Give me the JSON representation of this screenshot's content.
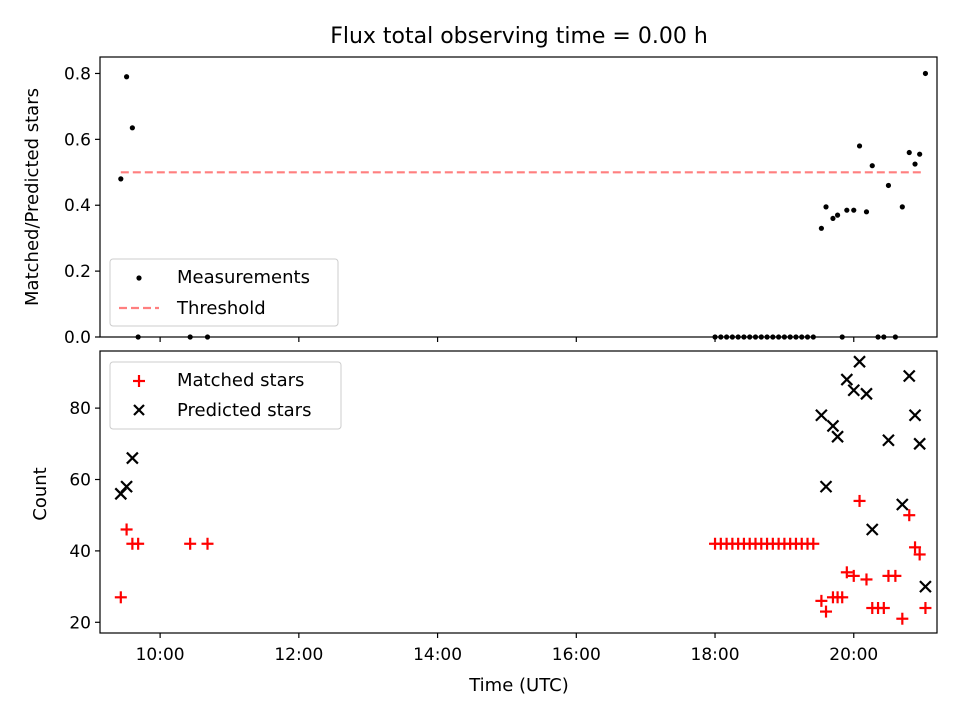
{
  "chart_data": [
    {
      "type": "scatter",
      "title": "Flux total observing time = 0.00 h",
      "ylabel": "Matched/Predicted stars",
      "xlabel": "",
      "ylim": [
        0,
        0.85
      ],
      "yticks": [
        "0.0",
        "0.2",
        "0.4",
        "0.6",
        "0.8"
      ],
      "legend": {
        "position": "lower-left",
        "entries": [
          {
            "label": "Measurements",
            "marker": "dot",
            "color": "#000000"
          },
          {
            "label": "Threshold",
            "marker": "dashed-line",
            "color": "#ff7f7f"
          }
        ]
      },
      "series": [
        {
          "name": "Measurements",
          "marker": "dot",
          "color": "#000000",
          "points": [
            [
              "09:26",
              0.48
            ],
            [
              "09:31",
              0.79
            ],
            [
              "09:36",
              0.635
            ],
            [
              "09:41",
              0.0
            ],
            [
              "10:26",
              0.0
            ],
            [
              "10:41",
              0.0
            ],
            [
              "18:00",
              0.0
            ],
            [
              "18:05",
              0.0
            ],
            [
              "18:10",
              0.0
            ],
            [
              "18:15",
              0.0
            ],
            [
              "18:20",
              0.0
            ],
            [
              "18:25",
              0.0
            ],
            [
              "18:30",
              0.0
            ],
            [
              "18:35",
              0.0
            ],
            [
              "18:40",
              0.0
            ],
            [
              "18:45",
              0.0
            ],
            [
              "18:50",
              0.0
            ],
            [
              "18:55",
              0.0
            ],
            [
              "19:00",
              0.0
            ],
            [
              "19:05",
              0.0
            ],
            [
              "19:10",
              0.0
            ],
            [
              "19:15",
              0.0
            ],
            [
              "19:20",
              0.0
            ],
            [
              "19:25",
              0.0
            ],
            [
              "19:32",
              0.33
            ],
            [
              "19:36",
              0.395
            ],
            [
              "19:42",
              0.36
            ],
            [
              "19:46",
              0.37
            ],
            [
              "19:50",
              0.0
            ],
            [
              "19:54",
              0.385
            ],
            [
              "20:00",
              0.385
            ],
            [
              "20:05",
              0.58
            ],
            [
              "20:11",
              0.38
            ],
            [
              "20:16",
              0.52
            ],
            [
              "20:21",
              0.0
            ],
            [
              "20:26",
              0.0
            ],
            [
              "20:30",
              0.46
            ],
            [
              "20:36",
              0.0
            ],
            [
              "20:42",
              0.395
            ],
            [
              "20:48",
              0.56
            ],
            [
              "20:53",
              0.525
            ],
            [
              "20:57",
              0.555
            ],
            [
              "21:02",
              0.8
            ]
          ]
        },
        {
          "name": "Threshold",
          "marker": "dashed-line",
          "color": "#ff7f7f",
          "points": [
            [
              "09:26",
              0.5
            ],
            [
              "21:00",
              0.5
            ]
          ]
        }
      ]
    },
    {
      "type": "scatter",
      "title": "",
      "xlabel": "Time (UTC)",
      "ylabel": "Count",
      "xlim": [
        "09:08",
        "21:12"
      ],
      "xticks": [
        "10:00",
        "12:00",
        "14:00",
        "16:00",
        "18:00",
        "20:00"
      ],
      "ylim": [
        17,
        96
      ],
      "yticks": [
        "20",
        "40",
        "60",
        "80"
      ],
      "legend": {
        "position": "upper-left",
        "entries": [
          {
            "label": "Matched stars",
            "marker": "plus",
            "color": "#ff0000"
          },
          {
            "label": "Predicted stars",
            "marker": "x",
            "color": "#000000"
          }
        ]
      },
      "series": [
        {
          "name": "Matched stars",
          "marker": "plus",
          "color": "#ff0000",
          "points": [
            [
              "09:26",
              27
            ],
            [
              "09:31",
              46
            ],
            [
              "09:36",
              42
            ],
            [
              "09:41",
              42
            ],
            [
              "10:26",
              42
            ],
            [
              "10:41",
              42
            ],
            [
              "18:00",
              42
            ],
            [
              "18:05",
              42
            ],
            [
              "18:10",
              42
            ],
            [
              "18:15",
              42
            ],
            [
              "18:20",
              42
            ],
            [
              "18:25",
              42
            ],
            [
              "18:30",
              42
            ],
            [
              "18:35",
              42
            ],
            [
              "18:40",
              42
            ],
            [
              "18:45",
              42
            ],
            [
              "18:50",
              42
            ],
            [
              "18:55",
              42
            ],
            [
              "19:00",
              42
            ],
            [
              "19:05",
              42
            ],
            [
              "19:10",
              42
            ],
            [
              "19:15",
              42
            ],
            [
              "19:20",
              42
            ],
            [
              "19:25",
              42
            ],
            [
              "19:32",
              26
            ],
            [
              "19:36",
              23
            ],
            [
              "19:42",
              27
            ],
            [
              "19:46",
              27
            ],
            [
              "19:50",
              27
            ],
            [
              "19:54",
              34
            ],
            [
              "20:00",
              33
            ],
            [
              "20:05",
              54
            ],
            [
              "20:11",
              32
            ],
            [
              "20:16",
              24
            ],
            [
              "20:21",
              24
            ],
            [
              "20:26",
              24
            ],
            [
              "20:30",
              33
            ],
            [
              "20:36",
              33
            ],
            [
              "20:42",
              21
            ],
            [
              "20:48",
              50
            ],
            [
              "20:53",
              41
            ],
            [
              "20:57",
              39
            ],
            [
              "21:02",
              24
            ]
          ]
        },
        {
          "name": "Predicted stars",
          "marker": "x",
          "color": "#000000",
          "points": [
            [
              "09:26",
              56
            ],
            [
              "09:31",
              58
            ],
            [
              "09:36",
              66
            ],
            [
              "19:32",
              78
            ],
            [
              "19:36",
              58
            ],
            [
              "19:42",
              75
            ],
            [
              "19:46",
              72
            ],
            [
              "19:54",
              88
            ],
            [
              "20:00",
              85
            ],
            [
              "20:05",
              93
            ],
            [
              "20:11",
              84
            ],
            [
              "20:16",
              46
            ],
            [
              "20:30",
              71
            ],
            [
              "20:42",
              53
            ],
            [
              "20:48",
              89
            ],
            [
              "20:53",
              78
            ],
            [
              "20:57",
              70
            ],
            [
              "21:02",
              30
            ]
          ]
        }
      ]
    }
  ]
}
